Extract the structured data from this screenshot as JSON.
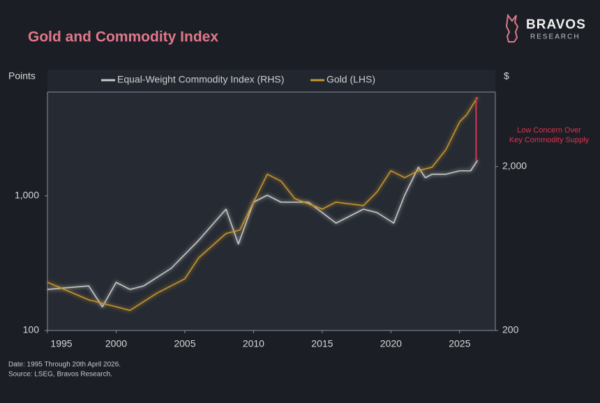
{
  "chart_data": {
    "type": "line",
    "title": "Gold and Commodity Index",
    "y_label": "Points",
    "y2_label": "$",
    "log_scale": true,
    "xlim": [
      1995,
      2027.6
    ],
    "xticks": [
      1995,
      2000,
      2005,
      2010,
      2015,
      2020,
      2025
    ],
    "ylim": [
      100,
      5900
    ],
    "yticks": [
      100,
      {
        "value": 1000,
        "label": "1,000"
      }
    ],
    "y2lim": [
      200,
      5700
    ],
    "y2ticks": [
      200,
      {
        "value": 2000,
        "label": "2,000"
      }
    ],
    "series": [
      {
        "name": "Equal-Weight Commodity Index (RHS)",
        "color": "#c9c9c9",
        "axis": "y2",
        "x": [
          1995,
          1998,
          1999,
          2000,
          2001,
          2002,
          2004,
          2006,
          2008,
          2008.9,
          2010,
          2011,
          2012,
          2014,
          2015,
          2016,
          2018,
          2019,
          2020.2,
          2021,
          2022,
          2022.5,
          2023,
          2024,
          2025,
          2025.8,
          2026.3
        ],
        "values": [
          356,
          374,
          279,
          393,
          356,
          374,
          478,
          708,
          1100,
          674,
          1213,
          1338,
          1213,
          1213,
          1047,
          904,
          1100,
          1047,
          904,
          1338,
          1983,
          1710,
          1796,
          1796,
          1885,
          1885,
          2182
        ]
      },
      {
        "name": "Gold (LHS)",
        "color": "#c8952e",
        "axis": "y",
        "x": [
          1995,
          1998,
          2000,
          2001,
          2003,
          2005,
          2006,
          2008,
          2009,
          2011,
          2012,
          2013,
          2015,
          2016,
          2018,
          2019,
          2020,
          2021,
          2022,
          2023,
          2024,
          2025,
          2025.5,
          2026.3
        ],
        "values": [
          228,
          169,
          150,
          141,
          190,
          242,
          346,
          525,
          557,
          1448,
          1285,
          953,
          797,
          898,
          846,
          1074,
          1537,
          1364,
          1537,
          1631,
          2198,
          3540,
          3990,
          5380
        ]
      }
    ],
    "annotation": [
      "Low Concern Over",
      "Key Commodity Supply"
    ],
    "annotation_color": "#e0324f",
    "footnotes": [
      "Date: 1995 Through 20th April 2026.",
      "Source: LSEG, Bravos Research."
    ],
    "brand": [
      "BRAVOS",
      "RESEARCH"
    ]
  }
}
